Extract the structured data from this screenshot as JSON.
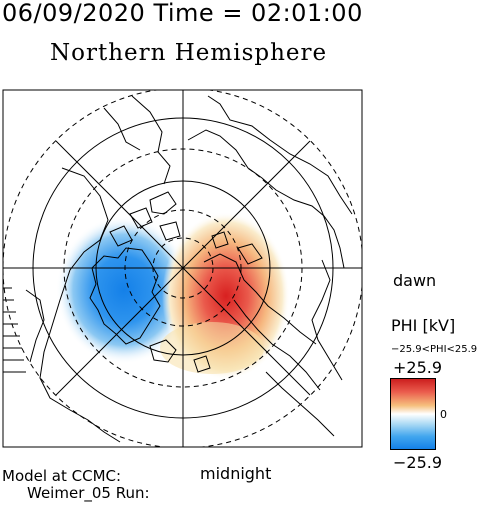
{
  "header": {
    "time_title": "06/09/2020 Time = 02:01:00",
    "hemisphere_title": "Northern Hemisphere"
  },
  "labels": {
    "dawn": "dawn",
    "midnight": "midnight"
  },
  "colorbar": {
    "title": "PHI [kV]",
    "range_text": "−25.9<PHI<25.9",
    "max_label": "+25.9",
    "zero_label": "0",
    "min_label": "−25.9",
    "colors": {
      "positive": "#cc1e1e",
      "neutral": "#ffffff",
      "negative": "#1480e8"
    }
  },
  "footer": {
    "line1": "Model at CCMC:",
    "line2": "Weimer_05 Run:"
  }
}
